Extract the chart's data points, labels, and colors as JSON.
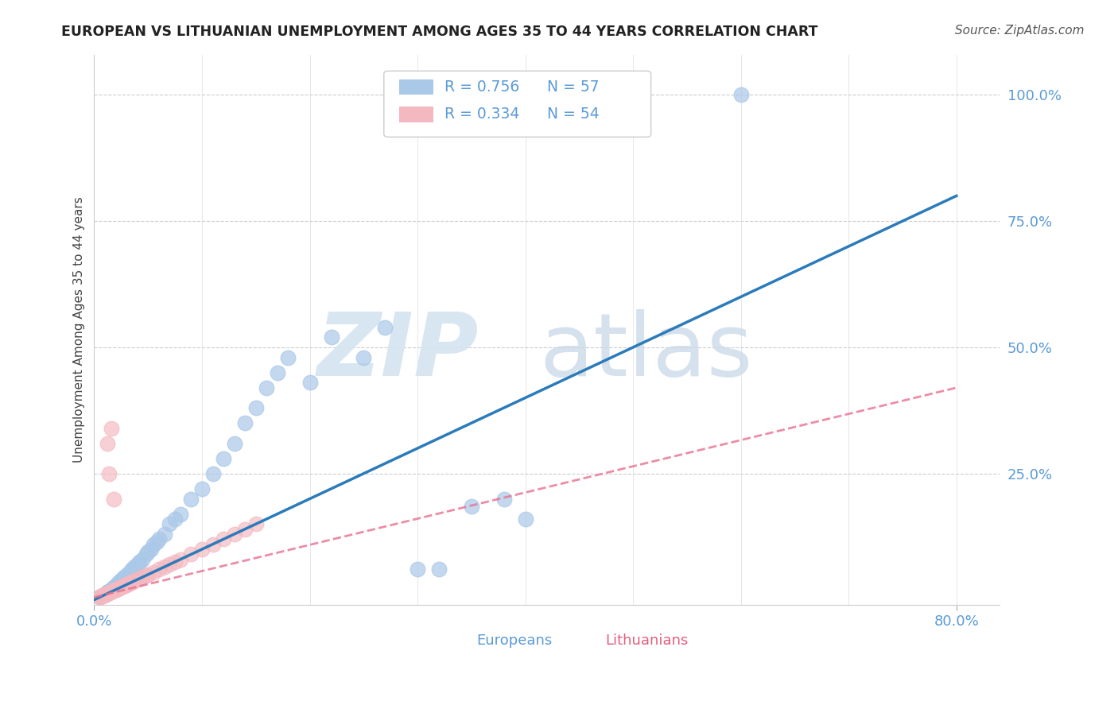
{
  "title": "EUROPEAN VS LITHUANIAN UNEMPLOYMENT AMONG AGES 35 TO 44 YEARS CORRELATION CHART",
  "source": "Source: ZipAtlas.com",
  "ylabel_label": "Unemployment Among Ages 35 to 44 years",
  "xlim": [
    0.0,
    0.84
  ],
  "ylim": [
    -0.01,
    1.08
  ],
  "background_color": "#ffffff",
  "grid_color": "#cccccc",
  "title_color": "#222222",
  "axis_label_color": "#5b9bd5",
  "watermark_zip_color": "#d0dff0",
  "watermark_atlas_color": "#c8d8e8",
  "europeans_x": [
    0.005,
    0.008,
    0.01,
    0.011,
    0.012,
    0.013,
    0.015,
    0.016,
    0.017,
    0.018,
    0.019,
    0.02,
    0.021,
    0.022,
    0.023,
    0.025,
    0.026,
    0.027,
    0.028,
    0.03,
    0.031,
    0.033,
    0.035,
    0.037,
    0.04,
    0.042,
    0.045,
    0.048,
    0.05,
    0.053,
    0.055,
    0.058,
    0.06,
    0.065,
    0.07,
    0.075,
    0.08,
    0.09,
    0.1,
    0.11,
    0.12,
    0.13,
    0.14,
    0.15,
    0.16,
    0.17,
    0.18,
    0.2,
    0.22,
    0.25,
    0.27,
    0.3,
    0.32,
    0.35,
    0.38,
    0.4,
    0.6
  ],
  "europeans_y": [
    0.005,
    0.008,
    0.01,
    0.012,
    0.015,
    0.016,
    0.018,
    0.02,
    0.022,
    0.025,
    0.026,
    0.028,
    0.03,
    0.032,
    0.035,
    0.038,
    0.04,
    0.042,
    0.045,
    0.048,
    0.05,
    0.055,
    0.06,
    0.065,
    0.07,
    0.075,
    0.08,
    0.09,
    0.095,
    0.1,
    0.11,
    0.115,
    0.12,
    0.13,
    0.15,
    0.16,
    0.17,
    0.2,
    0.22,
    0.25,
    0.28,
    0.31,
    0.35,
    0.38,
    0.42,
    0.45,
    0.48,
    0.43,
    0.52,
    0.48,
    0.54,
    0.06,
    0.06,
    0.185,
    0.2,
    0.16,
    1.0
  ],
  "lithuanians_x": [
    0.005,
    0.006,
    0.007,
    0.008,
    0.009,
    0.01,
    0.011,
    0.012,
    0.013,
    0.014,
    0.015,
    0.016,
    0.017,
    0.018,
    0.019,
    0.02,
    0.021,
    0.022,
    0.023,
    0.024,
    0.025,
    0.026,
    0.027,
    0.028,
    0.029,
    0.03,
    0.031,
    0.032,
    0.033,
    0.035,
    0.036,
    0.038,
    0.04,
    0.042,
    0.045,
    0.048,
    0.05,
    0.055,
    0.06,
    0.065,
    0.07,
    0.075,
    0.08,
    0.09,
    0.1,
    0.11,
    0.12,
    0.13,
    0.14,
    0.15,
    0.012,
    0.014,
    0.016,
    0.018
  ],
  "lithuanians_y": [
    0.005,
    0.006,
    0.007,
    0.008,
    0.009,
    0.01,
    0.011,
    0.012,
    0.013,
    0.014,
    0.015,
    0.016,
    0.017,
    0.018,
    0.019,
    0.02,
    0.021,
    0.022,
    0.023,
    0.024,
    0.025,
    0.026,
    0.027,
    0.028,
    0.029,
    0.03,
    0.031,
    0.032,
    0.033,
    0.035,
    0.036,
    0.038,
    0.04,
    0.042,
    0.045,
    0.048,
    0.05,
    0.055,
    0.06,
    0.065,
    0.07,
    0.075,
    0.08,
    0.09,
    0.1,
    0.11,
    0.12,
    0.13,
    0.14,
    0.15,
    0.31,
    0.25,
    0.34,
    0.2
  ],
  "blue_line_x": [
    0.0,
    0.8
  ],
  "blue_line_y": [
    0.0,
    0.8
  ],
  "pink_line_x": [
    0.0,
    0.8
  ],
  "pink_line_y": [
    0.005,
    0.42
  ],
  "dot_color_european": "#aac8e8",
  "dot_color_lithuanian": "#f4b8c0",
  "line_color_european": "#2b7bba",
  "line_color_lithuanian": "#e87090",
  "legend_eu_color": "#aac8e8",
  "legend_li_color": "#f4b8c0",
  "legend_text_color": "#5b9bd5",
  "legend_N_color": "#e06080",
  "ytick_labels": [
    "25.0%",
    "50.0%",
    "75.0%",
    "100.0%"
  ],
  "ytick_values": [
    0.25,
    0.5,
    0.75,
    1.0
  ]
}
